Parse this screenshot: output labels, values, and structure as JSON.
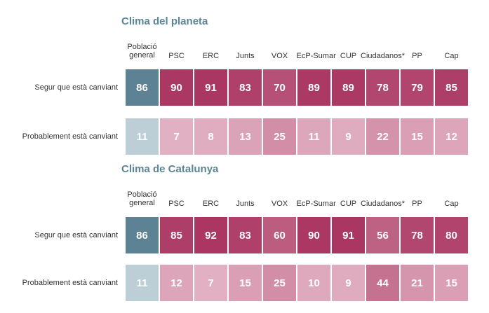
{
  "colors": {
    "title": "#5b8494",
    "general_strong": "#5c8293",
    "general_light": "#bccfd6",
    "party_base": "#a8325e",
    "party_light": "#e4b6c7"
  },
  "chart_data": [
    {
      "type": "heatmap",
      "title": "Clima del planeta",
      "columns": [
        "Població general",
        "PSC",
        "ERC",
        "Junts",
        "VOX",
        "EcP-Sumar",
        "CUP",
        "Ciudadanos*",
        "PP",
        "Cap"
      ],
      "rows": [
        {
          "label": "Segur que està canviant",
          "values": [
            86,
            90,
            91,
            83,
            70,
            89,
            89,
            78,
            79,
            85
          ]
        },
        {
          "label": "Probablement està canviant",
          "values": [
            11,
            7,
            8,
            13,
            25,
            11,
            9,
            22,
            15,
            12
          ]
        }
      ]
    },
    {
      "type": "heatmap",
      "title": "Clima de Catalunya",
      "columns": [
        "Població general",
        "PSC",
        "ERC",
        "Junts",
        "VOX",
        "EcP-Sumar",
        "CUP",
        "Ciudadanos*",
        "PP",
        "Cap"
      ],
      "rows": [
        {
          "label": "Segur que està canviant",
          "values": [
            86,
            85,
            92,
            83,
            60,
            90,
            91,
            56,
            78,
            80
          ]
        },
        {
          "label": "Probablement està canviant",
          "values": [
            11,
            12,
            7,
            15,
            25,
            10,
            9,
            44,
            21,
            15
          ]
        }
      ]
    }
  ]
}
